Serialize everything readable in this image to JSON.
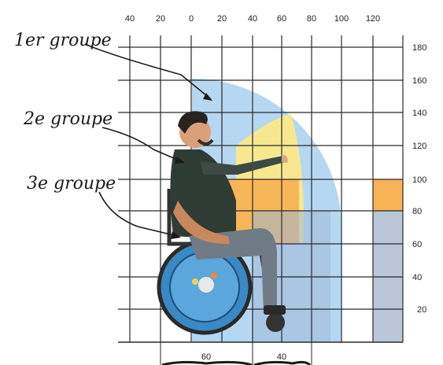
{
  "x_axis_ticks": [
    "40",
    "20",
    "0",
    "20",
    "40",
    "60",
    "80",
    "100",
    "120"
  ],
  "y_axis_ticks": [
    "180",
    "160",
    "140",
    "120",
    "100",
    "80",
    "60",
    "40",
    "20"
  ],
  "group_labels": [
    "1er groupe",
    "2e groupe",
    "3e groupe"
  ],
  "dimension_labels": [
    "60",
    "40"
  ],
  "colors": {
    "zone_group1": "#a9d0ee",
    "zone_group2": "#fbe98a",
    "zone_group3": "#f7b355",
    "grid": "#2a2a2a",
    "shelf_low": "#b9c7d8"
  },
  "icons": [
    "person-in-wheelchair-icon"
  ]
}
